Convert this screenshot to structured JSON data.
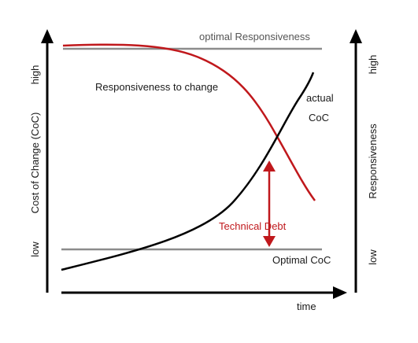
{
  "labels": {
    "optimal_responsiveness": "optimal Responsiveness",
    "responsiveness_to_change": "Responsiveness to change",
    "actual_line1": "actual",
    "actual_line2": "CoC",
    "technical_debt": "Technical Debt",
    "optimal_coc": "Optimal CoC",
    "time": "time",
    "left_axis_title": "Cost of Change (CoC)",
    "left_high": "high",
    "left_low": "low",
    "right_axis_title": "Responsiveness",
    "right_high": "high",
    "right_low": "low"
  },
  "colors": {
    "axis": "#000000",
    "reference_line": "#8c8c8c",
    "responsiveness_curve": "#c0181c",
    "coc_curve": "#000000",
    "technical_debt": "#c0181c"
  }
}
